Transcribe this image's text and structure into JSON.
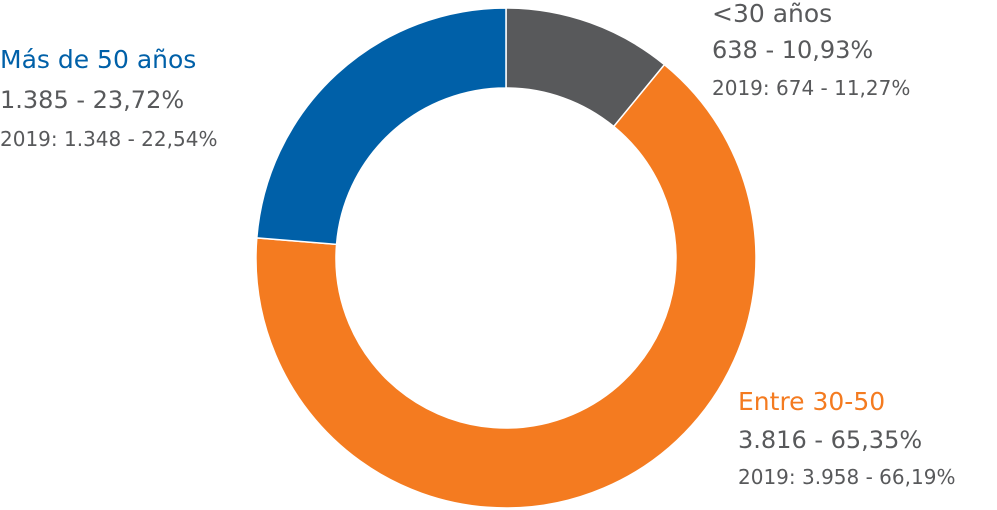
{
  "chart_data": {
    "type": "donut",
    "categories": [
      "<30 años",
      "Entre 30-50",
      "Más de 50 años"
    ],
    "values": [
      638,
      3816,
      1385
    ],
    "value_labels": [
      "638 - 10,93%",
      "3.816 - 65,35%",
      "1.385 - 23,72%"
    ],
    "comparison_labels": [
      "2019: 674 - 11,27%",
      "2019: 3.958 - 66,19%",
      "2019: 1.348 - 22,54%"
    ],
    "colors": [
      "#58595b",
      "#f47b20",
      "#0060a8"
    ]
  }
}
